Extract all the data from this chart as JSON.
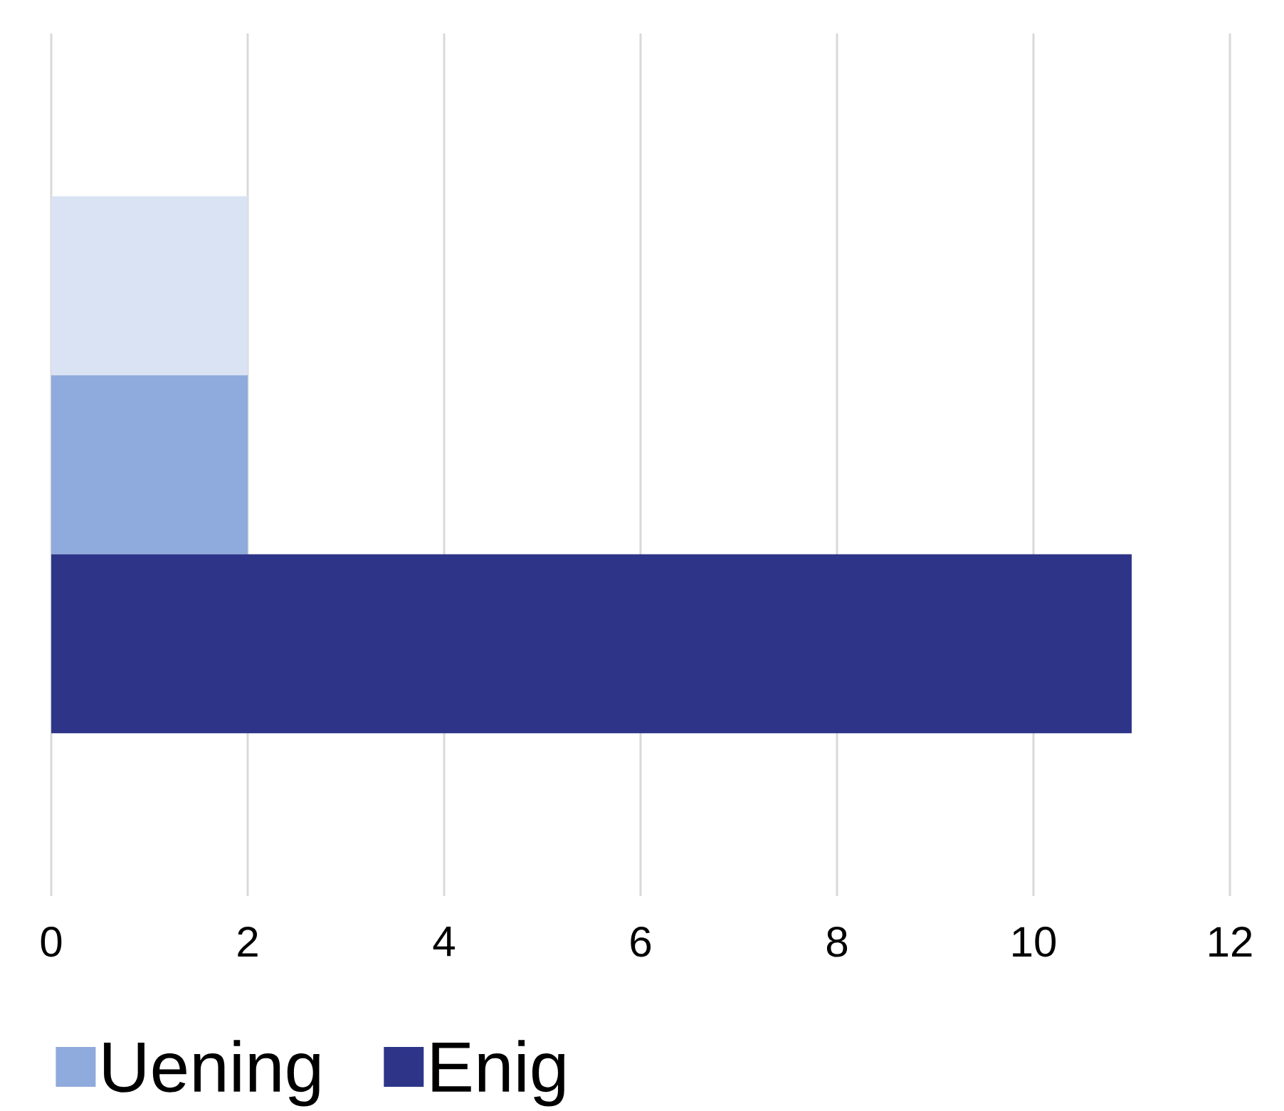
{
  "chart_data": {
    "type": "bar",
    "orientation": "horizontal",
    "categories": [
      null
    ],
    "series": [
      {
        "color": "#dae3f3",
        "values": [
          2
        ]
      },
      {
        "name": "Uening",
        "color": "#8faadc",
        "values": [
          2
        ]
      },
      {
        "name": "Enig",
        "color": "#2e3589",
        "values": [
          11
        ]
      }
    ],
    "xlim": [
      0,
      12
    ],
    "xticks": [
      0,
      2,
      4,
      6,
      8,
      10,
      12
    ],
    "grid": "x",
    "legend": "bottom"
  }
}
